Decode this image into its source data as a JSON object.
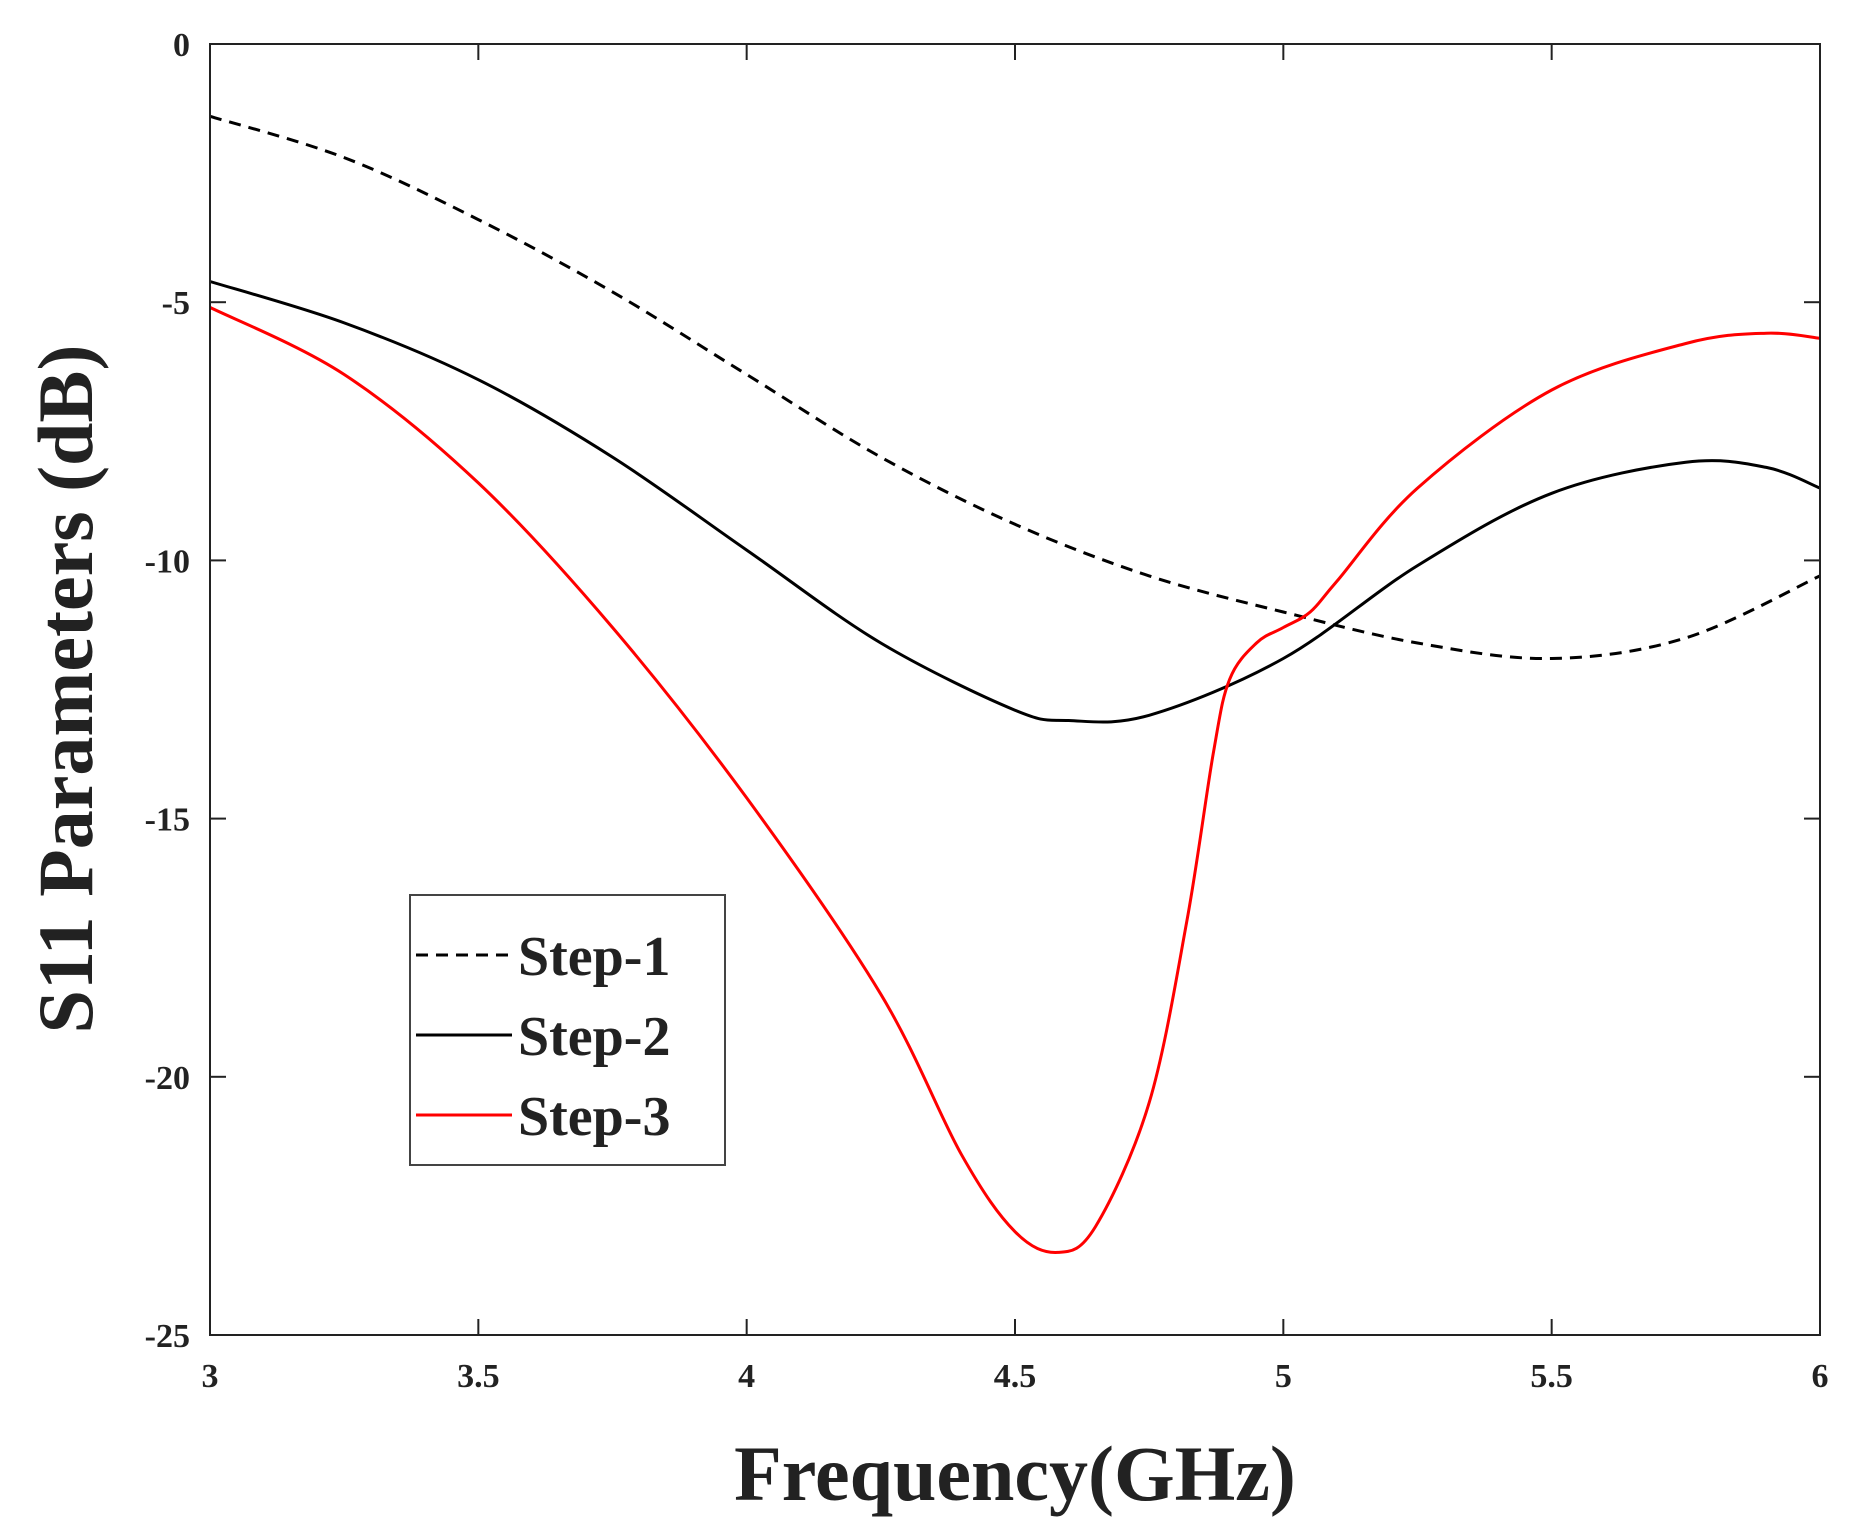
{
  "chart_data": {
    "type": "line",
    "title": "",
    "xlabel": "Frequency(GHz)",
    "ylabel": "S11 Parameters (dB)",
    "xlim": [
      3,
      6
    ],
    "ylim": [
      -25,
      0
    ],
    "xticks": [
      3,
      3.5,
      4,
      4.5,
      5,
      5.5,
      6
    ],
    "xtick_labels": [
      "3",
      "3.5",
      "4",
      "4.5",
      "5",
      "5.5",
      "6"
    ],
    "yticks": [
      0,
      -5,
      -10,
      -15,
      -20,
      -25
    ],
    "ytick_labels": [
      "0",
      "-5",
      "-10",
      "-15",
      "-20",
      "-25"
    ],
    "grid": false,
    "legend_position": "lower-left",
    "series": [
      {
        "name": "Step-1",
        "color": "#000000",
        "dash": "dashed",
        "x": [
          3.0,
          3.25,
          3.5,
          3.75,
          4.0,
          4.25,
          4.5,
          4.75,
          5.0,
          5.25,
          5.5,
          5.75,
          6.0
        ],
        "y": [
          -1.4,
          -2.2,
          -3.4,
          -4.8,
          -6.4,
          -8.0,
          -9.3,
          -10.3,
          -11.0,
          -11.6,
          -11.9,
          -11.5,
          -10.3
        ]
      },
      {
        "name": "Step-2",
        "color": "#000000",
        "dash": "solid",
        "x": [
          3.0,
          3.25,
          3.5,
          3.75,
          4.0,
          4.25,
          4.5,
          4.6,
          4.75,
          5.0,
          5.25,
          5.5,
          5.75,
          5.9,
          6.0
        ],
        "y": [
          -4.6,
          -5.4,
          -6.5,
          -8.0,
          -9.8,
          -11.6,
          -12.9,
          -13.1,
          -13.0,
          -11.9,
          -10.1,
          -8.7,
          -8.1,
          -8.2,
          -8.6
        ]
      },
      {
        "name": "Step-3",
        "color": "#ff0000",
        "dash": "solid",
        "x": [
          3.0,
          3.25,
          3.5,
          3.75,
          4.0,
          4.25,
          4.4,
          4.5,
          4.58,
          4.65,
          4.75,
          4.82,
          4.87,
          4.9,
          4.95,
          5.0,
          5.05,
          5.1,
          5.25,
          5.5,
          5.75,
          5.9,
          6.0
        ],
        "y": [
          -5.1,
          -6.4,
          -8.5,
          -11.3,
          -14.6,
          -18.4,
          -21.5,
          -23.0,
          -23.4,
          -22.9,
          -20.5,
          -17.0,
          -13.7,
          -12.3,
          -11.6,
          -11.3,
          -11.0,
          -10.4,
          -8.6,
          -6.7,
          -5.8,
          -5.6,
          -5.7
        ]
      }
    ]
  }
}
